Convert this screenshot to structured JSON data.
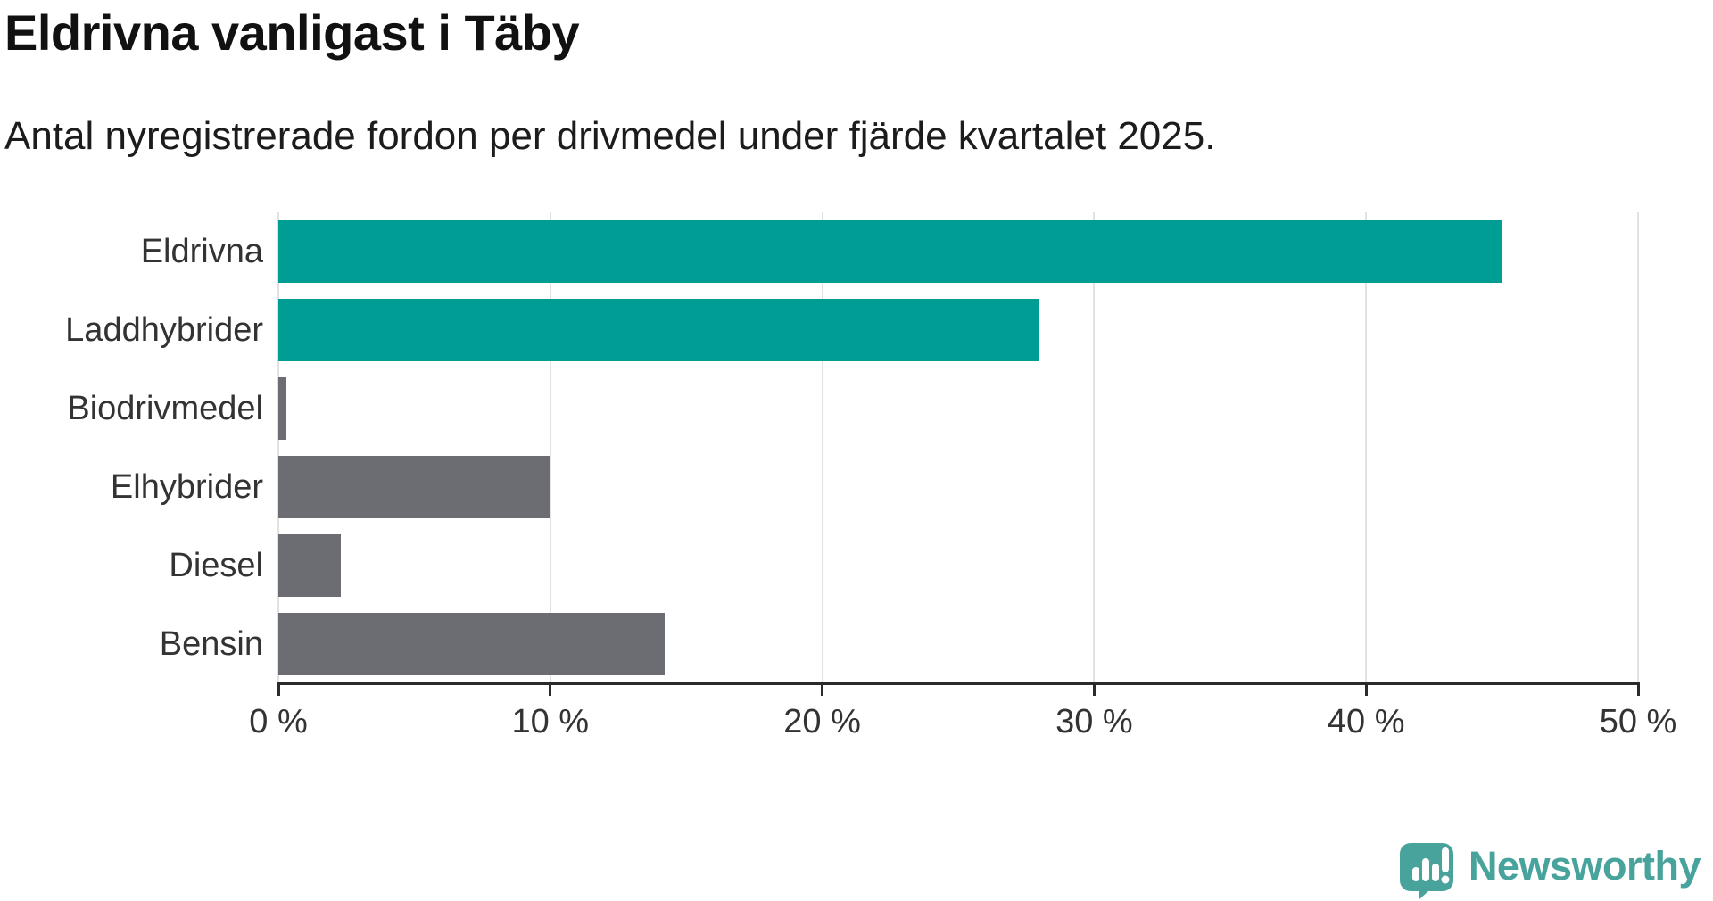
{
  "header": {
    "title": "Eldrivna vanligast i Täby",
    "subtitle": "Antal nyregistrerade fordon per drivmedel under fjärde kvartalet 2025."
  },
  "chart_data": {
    "type": "bar",
    "orientation": "horizontal",
    "title": "Eldrivna vanligast i Täby",
    "subtitle": "Antal nyregistrerade fordon per drivmedel under fjärde kvartalet 2025.",
    "categories": [
      "Eldrivna",
      "Laddhybrider",
      "Biodrivmedel",
      "Elhybrider",
      "Diesel",
      "Bensin"
    ],
    "values": [
      45.0,
      28.0,
      0.3,
      10.0,
      2.3,
      14.2
    ],
    "unit": "%",
    "xlim": [
      0,
      50
    ],
    "x_ticks": [
      0,
      10,
      20,
      30,
      40,
      50
    ],
    "x_tick_labels": [
      "0 %",
      "10 %",
      "20 %",
      "30 %",
      "40 %",
      "50 %"
    ],
    "bar_colors": [
      "#009d95",
      "#009d95",
      "#6c6d73",
      "#6c6d73",
      "#6c6d73",
      "#6c6d73"
    ],
    "grid": true,
    "legend": "none"
  },
  "colors": {
    "accent_teal": "#009d95",
    "neutral_gray": "#6c6d73",
    "gridline": "#e2e2e2",
    "axis": "#2b2b2b",
    "text": "#333333",
    "logo_teal": "#48a39c"
  },
  "branding": {
    "logo_text": "Newsworthy"
  }
}
